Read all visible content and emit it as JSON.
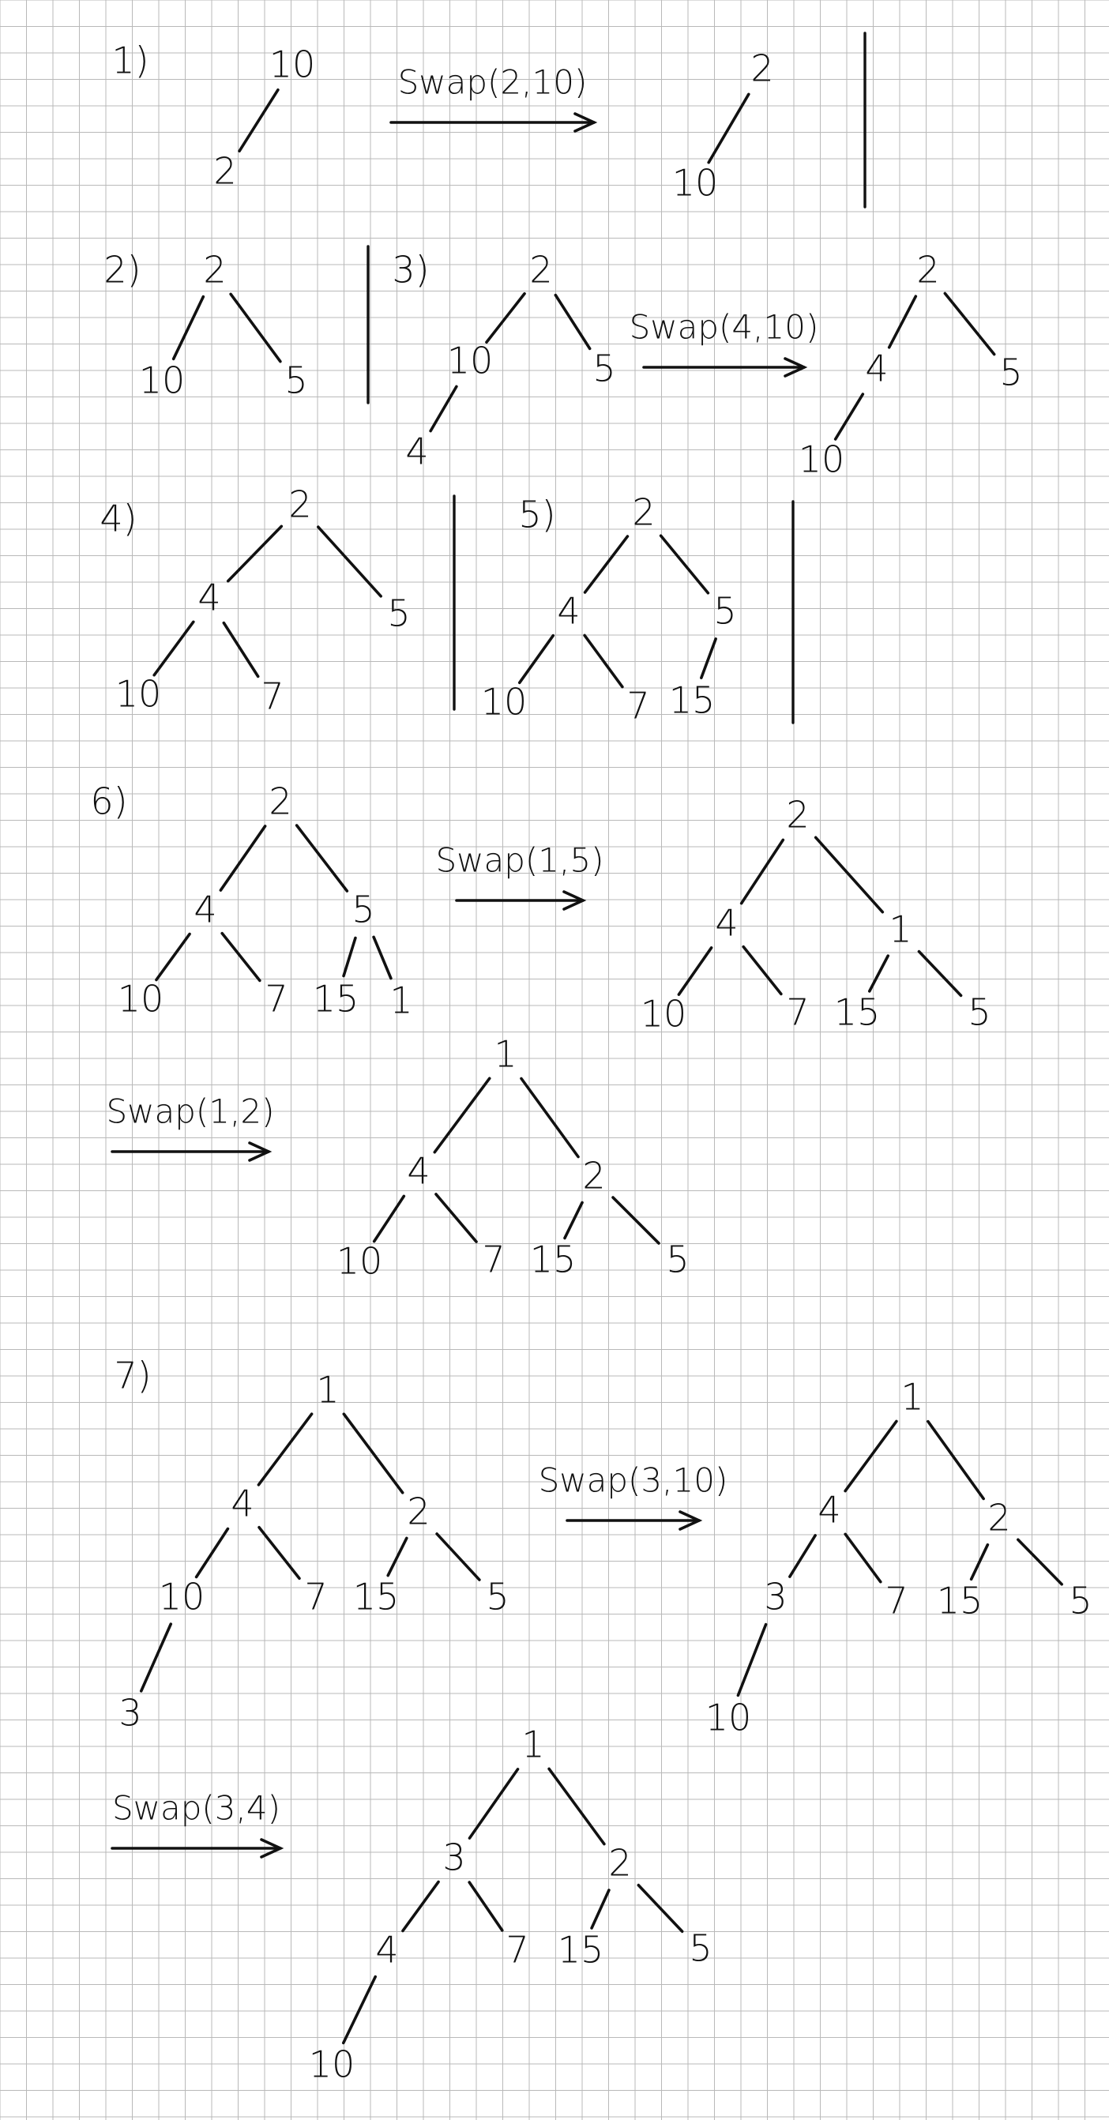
{
  "steps": [
    {
      "label": "1)",
      "trees": [
        {
          "nodes": [
            "10",
            "2"
          ],
          "edges": [
            [
              0,
              1
            ]
          ]
        },
        {
          "nodes": [
            "2",
            "10"
          ],
          "edges": [
            [
              0,
              1
            ]
          ]
        }
      ],
      "swap": "Swap(2,10)"
    },
    {
      "label": "2)",
      "trees": [
        {
          "nodes": [
            "2",
            "10",
            "5"
          ],
          "edges": [
            [
              0,
              1
            ],
            [
              0,
              2
            ]
          ]
        }
      ]
    },
    {
      "label": "3)",
      "trees": [
        {
          "nodes": [
            "2",
            "10",
            "5",
            "4"
          ],
          "edges": [
            [
              0,
              1
            ],
            [
              0,
              2
            ],
            [
              1,
              3
            ]
          ]
        },
        {
          "nodes": [
            "2",
            "4",
            "5",
            "10"
          ],
          "edges": [
            [
              0,
              1
            ],
            [
              0,
              2
            ],
            [
              1,
              3
            ]
          ]
        }
      ],
      "swap": "Swap(4,10)"
    },
    {
      "label": "4)",
      "trees": [
        {
          "nodes": [
            "2",
            "4",
            "5",
            "10",
            "7"
          ],
          "edges": [
            [
              0,
              1
            ],
            [
              0,
              2
            ],
            [
              1,
              3
            ],
            [
              1,
              4
            ]
          ]
        }
      ]
    },
    {
      "label": "5)",
      "trees": [
        {
          "nodes": [
            "2",
            "4",
            "5",
            "10",
            "7",
            "15"
          ],
          "edges": [
            [
              0,
              1
            ],
            [
              0,
              2
            ],
            [
              1,
              3
            ],
            [
              1,
              4
            ],
            [
              2,
              5
            ]
          ]
        }
      ]
    },
    {
      "label": "6)",
      "trees": [
        {
          "nodes": [
            "2",
            "4",
            "5",
            "10",
            "7",
            "15",
            "1"
          ],
          "edges": [
            [
              0,
              1
            ],
            [
              0,
              2
            ],
            [
              1,
              3
            ],
            [
              1,
              4
            ],
            [
              2,
              5
            ],
            [
              2,
              6
            ]
          ]
        },
        {
          "nodes": [
            "2",
            "4",
            "1",
            "10",
            "7",
            "15",
            "5"
          ],
          "edges": [
            [
              0,
              1
            ],
            [
              0,
              2
            ],
            [
              1,
              3
            ],
            [
              1,
              4
            ],
            [
              2,
              5
            ],
            [
              2,
              6
            ]
          ]
        },
        {
          "nodes": [
            "1",
            "4",
            "2",
            "10",
            "7",
            "15",
            "5"
          ],
          "edges": [
            [
              0,
              1
            ],
            [
              0,
              2
            ],
            [
              1,
              3
            ],
            [
              1,
              4
            ],
            [
              2,
              5
            ],
            [
              2,
              6
            ]
          ]
        }
      ],
      "swaps": [
        "Swap(1,5)",
        "Swap(1,2)"
      ]
    },
    {
      "label": "7)",
      "trees": [
        {
          "nodes": [
            "1",
            "4",
            "2",
            "10",
            "7",
            "15",
            "5",
            "3"
          ],
          "edges": [
            [
              0,
              1
            ],
            [
              0,
              2
            ],
            [
              1,
              3
            ],
            [
              1,
              4
            ],
            [
              2,
              5
            ],
            [
              2,
              6
            ],
            [
              3,
              7
            ]
          ]
        },
        {
          "nodes": [
            "1",
            "4",
            "2",
            "3",
            "7",
            "15",
            "5",
            "10"
          ],
          "edges": [
            [
              0,
              1
            ],
            [
              0,
              2
            ],
            [
              1,
              3
            ],
            [
              1,
              4
            ],
            [
              2,
              5
            ],
            [
              2,
              6
            ],
            [
              3,
              7
            ]
          ]
        },
        {
          "nodes": [
            "1",
            "3",
            "2",
            "4",
            "7",
            "15",
            "5",
            "10"
          ],
          "edges": [
            [
              0,
              1
            ],
            [
              0,
              2
            ],
            [
              1,
              3
            ],
            [
              1,
              4
            ],
            [
              2,
              5
            ],
            [
              2,
              6
            ],
            [
              3,
              7
            ]
          ]
        }
      ],
      "swaps": [
        "Swap(3,10)",
        "Swap(3,4)"
      ]
    }
  ],
  "colors": {
    "paper": "#ffffff",
    "grid": "#b9b9b9",
    "ink": "#111111"
  }
}
